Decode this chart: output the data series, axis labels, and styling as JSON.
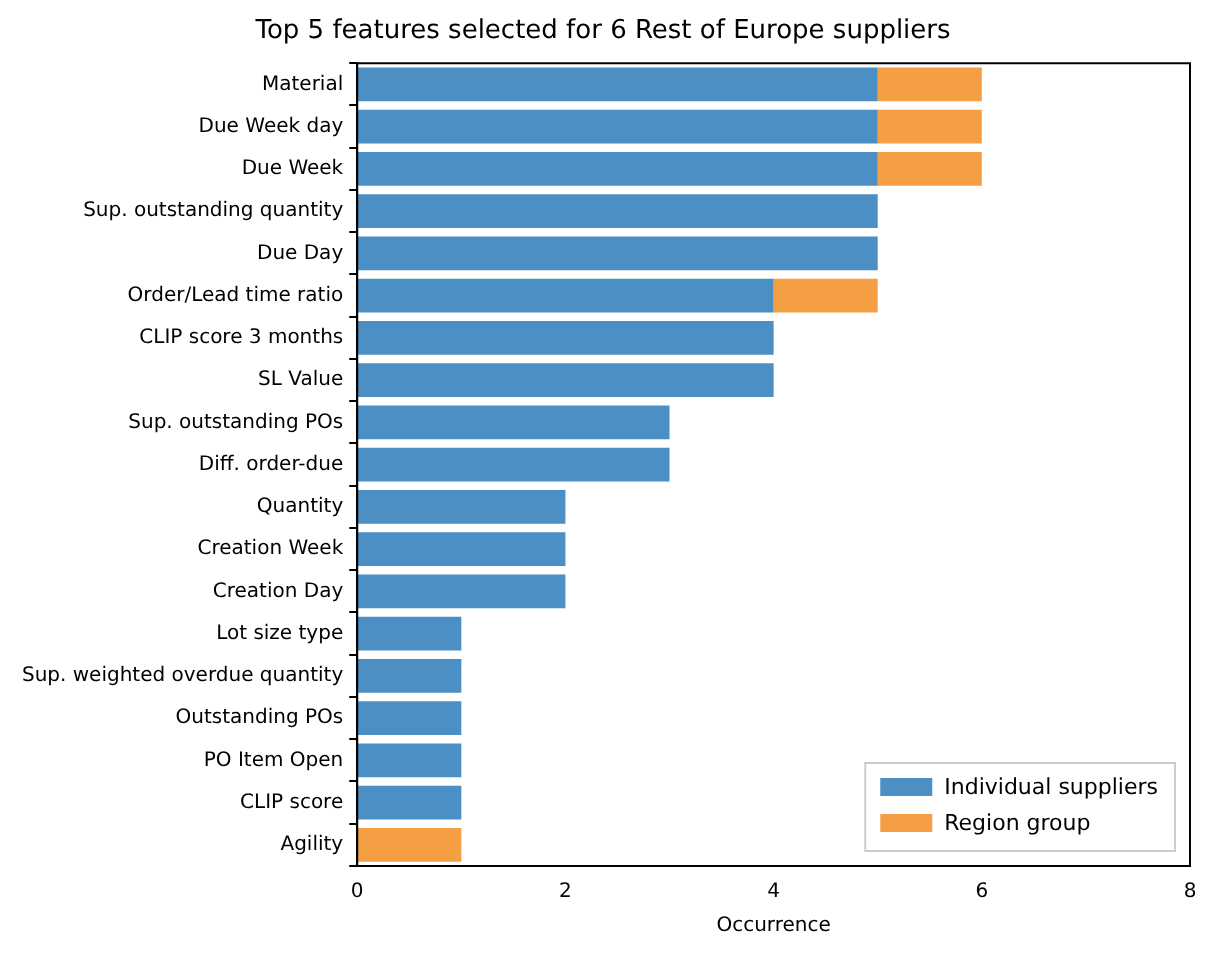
{
  "chart_data": {
    "type": "bar",
    "orientation": "horizontal",
    "stacked": true,
    "title": "Top 5 features selected for 6 Rest of Europe suppliers",
    "xlabel": "Occurrence",
    "categories": [
      "Material",
      "Due Week day",
      "Due Week",
      "Sup. outstanding quantity",
      "Due Day",
      "Order/Lead time ratio",
      "CLIP score 3 months",
      "SL Value",
      "Sup. outstanding POs",
      "Diff. order-due",
      "Quantity",
      "Creation Week",
      "Creation Day",
      "Lot size type",
      "Sup. weighted overdue quantity",
      "Outstanding POs",
      "PO Item Open",
      "CLIP score",
      "Agility"
    ],
    "series": [
      {
        "name": "Individual suppliers",
        "color": "#4b8fc4",
        "values": [
          5,
          5,
          5,
          5,
          5,
          4,
          4,
          4,
          3,
          3,
          2,
          2,
          2,
          1,
          1,
          1,
          1,
          1,
          0
        ]
      },
      {
        "name": "Region group",
        "color": "#f59f45",
        "values": [
          1,
          1,
          1,
          0,
          0,
          1,
          0,
          0,
          0,
          0,
          0,
          0,
          0,
          0,
          0,
          0,
          0,
          0,
          1
        ]
      }
    ],
    "xlim": [
      0,
      8
    ],
    "xticks": [
      0,
      2,
      4,
      6,
      8
    ],
    "grid": false,
    "legend": "bottom right"
  }
}
